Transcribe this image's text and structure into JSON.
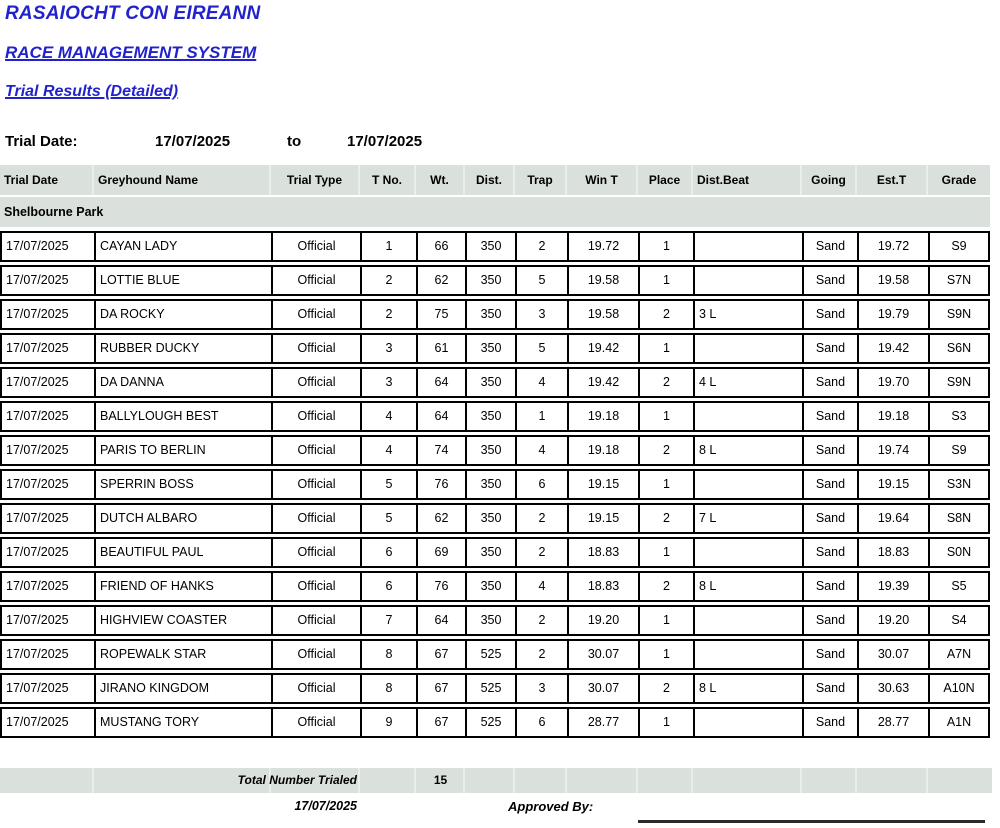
{
  "titles": {
    "org": "RASAIOCHT CON EIREANN",
    "system": "RACE MANAGEMENT SYSTEM",
    "report": "Trial Results (Detailed)"
  },
  "filter": {
    "label": "Trial Date:",
    "from": "17/07/2025",
    "to_word": "to",
    "to": "17/07/2025"
  },
  "table": {
    "columns": [
      "Trial Date",
      "Greyhound Name",
      "Trial Type",
      "T No.",
      "Wt.",
      "Dist.",
      "Trap",
      "Win T",
      "Place",
      "Dist.Beat",
      "Going",
      "Est.T",
      "Grade"
    ],
    "section": "Shelbourne Park",
    "rows": [
      [
        "17/07/2025",
        "CAYAN LADY",
        "Official",
        "1",
        "66",
        "350",
        "2",
        "19.72",
        "1",
        "",
        "Sand",
        "19.72",
        "S9"
      ],
      [
        "17/07/2025",
        "LOTTIE BLUE",
        "Official",
        "2",
        "62",
        "350",
        "5",
        "19.58",
        "1",
        "",
        "Sand",
        "19.58",
        "S7N"
      ],
      [
        "17/07/2025",
        "DA ROCKY",
        "Official",
        "2",
        "75",
        "350",
        "3",
        "19.58",
        "2",
        "3 L",
        "Sand",
        "19.79",
        "S9N"
      ],
      [
        "17/07/2025",
        "RUBBER DUCKY",
        "Official",
        "3",
        "61",
        "350",
        "5",
        "19.42",
        "1",
        "",
        "Sand",
        "19.42",
        "S6N"
      ],
      [
        "17/07/2025",
        "DA DANNA",
        "Official",
        "3",
        "64",
        "350",
        "4",
        "19.42",
        "2",
        "4 L",
        "Sand",
        "19.70",
        "S9N"
      ],
      [
        "17/07/2025",
        "BALLYLOUGH BEST",
        "Official",
        "4",
        "64",
        "350",
        "1",
        "19.18",
        "1",
        "",
        "Sand",
        "19.18",
        "S3"
      ],
      [
        "17/07/2025",
        "PARIS TO BERLIN",
        "Official",
        "4",
        "74",
        "350",
        "4",
        "19.18",
        "2",
        "8 L",
        "Sand",
        "19.74",
        "S9"
      ],
      [
        "17/07/2025",
        "SPERRIN BOSS",
        "Official",
        "5",
        "76",
        "350",
        "6",
        "19.15",
        "1",
        "",
        "Sand",
        "19.15",
        "S3N"
      ],
      [
        "17/07/2025",
        "DUTCH ALBARO",
        "Official",
        "5",
        "62",
        "350",
        "2",
        "19.15",
        "2",
        "7 L",
        "Sand",
        "19.64",
        "S8N"
      ],
      [
        "17/07/2025",
        "BEAUTIFUL PAUL",
        "Official",
        "6",
        "69",
        "350",
        "2",
        "18.83",
        "1",
        "",
        "Sand",
        "18.83",
        "S0N"
      ],
      [
        "17/07/2025",
        "FRIEND OF HANKS",
        "Official",
        "6",
        "76",
        "350",
        "4",
        "18.83",
        "2",
        "8 L",
        "Sand",
        "19.39",
        "S5"
      ],
      [
        "17/07/2025",
        "HIGHVIEW COASTER",
        "Official",
        "7",
        "64",
        "350",
        "2",
        "19.20",
        "1",
        "",
        "Sand",
        "19.20",
        "S4"
      ],
      [
        "17/07/2025",
        "ROPEWALK STAR",
        "Official",
        "8",
        "67",
        "525",
        "2",
        "30.07",
        "1",
        "",
        "Sand",
        "30.07",
        "A7N"
      ],
      [
        "17/07/2025",
        "JIRANO KINGDOM",
        "Official",
        "8",
        "67",
        "525",
        "3",
        "30.07",
        "2",
        "8 L",
        "Sand",
        "30.63",
        "A10N"
      ],
      [
        "17/07/2025",
        "MUSTANG TORY",
        "Official",
        "9",
        "67",
        "525",
        "6",
        "28.77",
        "1",
        "",
        "Sand",
        "28.77",
        "A1N"
      ]
    ]
  },
  "footer": {
    "total_label": "Total Number Trialed",
    "total_value": "15",
    "date": "17/07/2025",
    "approved_label": "Approved By:"
  },
  "colors": {
    "title_blue": "#2222cc",
    "band_gray": "#dae0dc",
    "border_black": "#000000"
  }
}
